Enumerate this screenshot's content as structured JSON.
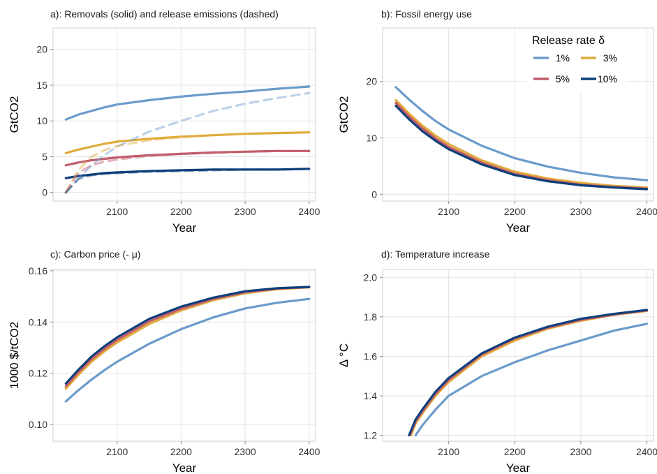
{
  "colors": {
    "r1": "#6a9bcb",
    "r3": "#e0ab3c",
    "r5": "#c25d6b",
    "r10": "#0d3f7a"
  },
  "legend": {
    "title": "Release rate δ",
    "placement": "top-right of panel b",
    "entries": [
      {
        "label": "1%",
        "color": "#6a9bcb"
      },
      {
        "label": "3%",
        "color": "#e0ab3c"
      },
      {
        "label": "5%",
        "color": "#c25d6b"
      },
      {
        "label": "10%",
        "color": "#0d3f7a"
      }
    ]
  },
  "chart_data": [
    {
      "type": "line",
      "title": "a): Removals (solid) and release emissions (dashed)",
      "xlabel": "Year",
      "ylabel": "GtCO2",
      "xlim": [
        2000,
        2410
      ],
      "ylim": [
        -1.2,
        23
      ],
      "xticks": [
        "2100",
        "2200",
        "2300",
        "2400"
      ],
      "yticks": [
        "0",
        "5",
        "10",
        "15",
        "20"
      ],
      "grid": true,
      "x": [
        2020,
        2040,
        2060,
        2080,
        2100,
        2150,
        2200,
        2250,
        2300,
        2350,
        2400
      ],
      "series": [
        {
          "name": "1%",
          "style": "solid",
          "values": [
            10.2,
            10.9,
            11.4,
            11.9,
            12.3,
            12.9,
            13.4,
            13.8,
            14.1,
            14.5,
            14.8
          ]
        },
        {
          "name": "3%",
          "style": "solid",
          "values": [
            5.5,
            6.0,
            6.4,
            6.8,
            7.1,
            7.5,
            7.8,
            8.0,
            8.2,
            8.3,
            8.4
          ]
        },
        {
          "name": "5%",
          "style": "solid",
          "values": [
            3.8,
            4.2,
            4.5,
            4.7,
            4.9,
            5.2,
            5.4,
            5.6,
            5.7,
            5.8,
            5.8
          ]
        },
        {
          "name": "10%",
          "style": "solid",
          "values": [
            2.0,
            2.3,
            2.5,
            2.7,
            2.8,
            3.0,
            3.1,
            3.2,
            3.2,
            3.2,
            3.3
          ]
        },
        {
          "name": "1%",
          "style": "dashed",
          "values": [
            0.0,
            2.0,
            3.8,
            5.2,
            6.4,
            8.5,
            10.0,
            11.4,
            12.4,
            13.2,
            13.9
          ]
        },
        {
          "name": "3%",
          "style": "dashed",
          "values": [
            0.0,
            3.2,
            5.0,
            5.9,
            6.5,
            7.3,
            7.7,
            8.0,
            8.2,
            8.3,
            8.4
          ]
        },
        {
          "name": "5%",
          "style": "dashed",
          "values": [
            0.0,
            2.8,
            3.8,
            4.3,
            4.6,
            5.1,
            5.4,
            5.5,
            5.7,
            5.8,
            5.8
          ]
        },
        {
          "name": "10%",
          "style": "dashed",
          "values": [
            0.0,
            1.9,
            2.4,
            2.6,
            2.7,
            2.9,
            3.0,
            3.1,
            3.2,
            3.2,
            3.3
          ]
        }
      ]
    },
    {
      "type": "line",
      "title": "b): Fossil energy use",
      "xlabel": "Year",
      "ylabel": "GtCO2",
      "xlim": [
        2000,
        2410
      ],
      "ylim": [
        -1.2,
        29.5
      ],
      "xticks": [
        "2100",
        "2200",
        "2300",
        "2400"
      ],
      "yticks": [
        "0",
        "10",
        "20"
      ],
      "grid": true,
      "x": [
        2020,
        2040,
        2060,
        2080,
        2100,
        2150,
        2200,
        2250,
        2300,
        2350,
        2400
      ],
      "series": [
        {
          "name": "1%",
          "values": [
            19.0,
            16.8,
            14.8,
            13.0,
            11.5,
            8.6,
            6.4,
            4.9,
            3.8,
            3.0,
            2.5
          ]
        },
        {
          "name": "3%",
          "values": [
            16.7,
            14.3,
            12.2,
            10.4,
            8.9,
            6.0,
            4.0,
            2.8,
            2.0,
            1.5,
            1.2
          ]
        },
        {
          "name": "5%",
          "values": [
            16.2,
            13.8,
            11.7,
            9.9,
            8.4,
            5.6,
            3.6,
            2.5,
            1.7,
            1.3,
            1.0
          ]
        },
        {
          "name": "10%",
          "values": [
            15.7,
            13.3,
            11.2,
            9.5,
            8.0,
            5.3,
            3.4,
            2.3,
            1.6,
            1.2,
            0.9
          ]
        }
      ]
    },
    {
      "type": "line",
      "title": "c): Carbon price (- μ)",
      "xlabel": "Year",
      "ylabel": "1000 $/tCO2",
      "xlim": [
        2000,
        2410
      ],
      "ylim": [
        0.0935,
        0.1605
      ],
      "xticks": [
        "2100",
        "2200",
        "2300",
        "2400"
      ],
      "yticks": [
        "0.10",
        "0.12",
        "0.14",
        "0.16"
      ],
      "grid": true,
      "x": [
        2020,
        2040,
        2060,
        2080,
        2100,
        2150,
        2200,
        2250,
        2300,
        2350,
        2400
      ],
      "series": [
        {
          "name": "1%",
          "values": [
            0.109,
            0.1135,
            0.1175,
            0.1212,
            0.1245,
            0.1315,
            0.1372,
            0.1418,
            0.1453,
            0.1475,
            0.149
          ]
        },
        {
          "name": "3%",
          "values": [
            0.114,
            0.1195,
            0.1245,
            0.1285,
            0.132,
            0.1392,
            0.1445,
            0.1485,
            0.1512,
            0.1528,
            0.1535
          ]
        },
        {
          "name": "5%",
          "values": [
            0.115,
            0.1205,
            0.1255,
            0.1295,
            0.133,
            0.1402,
            0.1452,
            0.149,
            0.1516,
            0.153,
            0.1536
          ]
        },
        {
          "name": "10%",
          "values": [
            0.116,
            0.1215,
            0.1265,
            0.1305,
            0.134,
            0.1412,
            0.146,
            0.1495,
            0.152,
            0.1532,
            0.1537
          ]
        }
      ]
    },
    {
      "type": "line",
      "title": "d): Temperature increase",
      "xlabel": "Year",
      "ylabel": "Δ °C",
      "xlim": [
        2000,
        2410
      ],
      "ylim": [
        1.17,
        2.04
      ],
      "xticks": [
        "2100",
        "2200",
        "2300",
        "2400"
      ],
      "yticks": [
        "1.2",
        "1.4",
        "1.6",
        "1.8",
        "2.0"
      ],
      "grid": true,
      "x": [
        2040,
        2050,
        2060,
        2080,
        2100,
        2150,
        2200,
        2250,
        2300,
        2350,
        2400
      ],
      "series": [
        {
          "name": "1%",
          "x": [
            2050,
            2060,
            2080,
            2100,
            2150,
            2200,
            2250,
            2300,
            2350,
            2400
          ],
          "values": [
            1.2,
            1.25,
            1.33,
            1.4,
            1.5,
            1.57,
            1.63,
            1.68,
            1.73,
            1.765
          ]
        },
        {
          "name": "3%",
          "x": [
            2043,
            2050,
            2060,
            2080,
            2100,
            2150,
            2200,
            2250,
            2300,
            2350,
            2400
          ],
          "values": [
            1.2,
            1.26,
            1.31,
            1.4,
            1.47,
            1.6,
            1.68,
            1.74,
            1.78,
            1.81,
            1.83
          ]
        },
        {
          "name": "5%",
          "x": [
            2041,
            2050,
            2060,
            2080,
            2100,
            2150,
            2200,
            2250,
            2300,
            2350,
            2400
          ],
          "values": [
            1.2,
            1.27,
            1.32,
            1.41,
            1.48,
            1.61,
            1.69,
            1.745,
            1.785,
            1.812,
            1.832
          ]
        },
        {
          "name": "10%",
          "x": [
            2040,
            2050,
            2060,
            2080,
            2100,
            2150,
            2200,
            2250,
            2300,
            2350,
            2400
          ],
          "values": [
            1.2,
            1.28,
            1.33,
            1.42,
            1.49,
            1.615,
            1.695,
            1.75,
            1.79,
            1.815,
            1.835
          ]
        }
      ]
    }
  ]
}
